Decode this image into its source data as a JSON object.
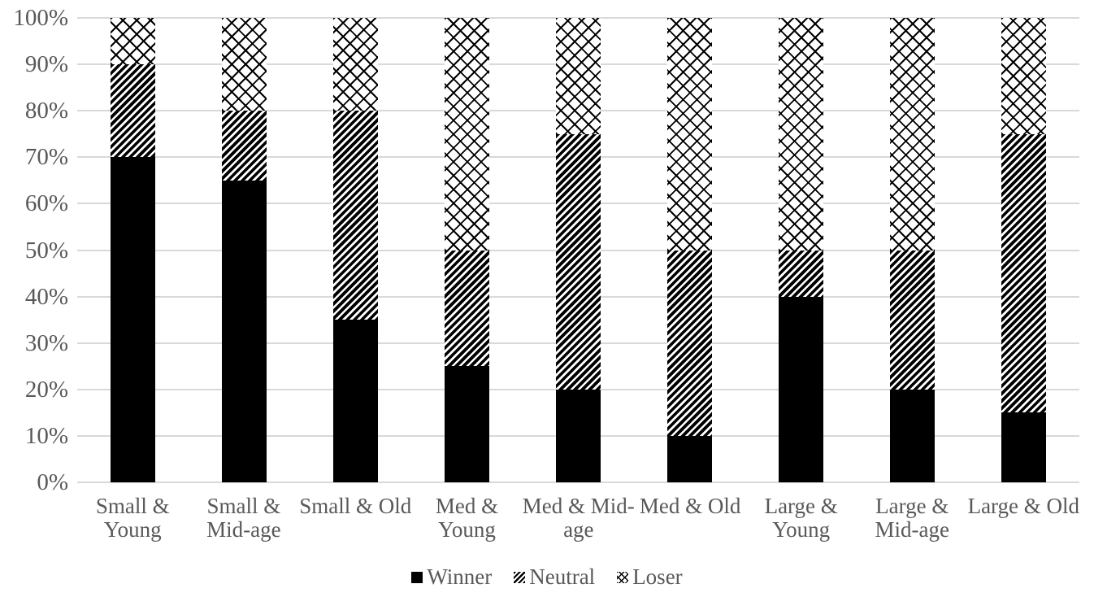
{
  "chart_data": {
    "type": "bar",
    "stacked": true,
    "percent_scale": true,
    "title": "",
    "xlabel": "",
    "ylabel": "",
    "categories": [
      "Small & Young",
      "Small & Mid-age",
      "Small & Old",
      "Med & Young",
      "Med & Mid-age",
      "Med & Old",
      "Large & Young",
      "Large & Mid-age",
      "Large & Old"
    ],
    "tick_lines": [
      [
        "Small &",
        "Young"
      ],
      [
        "Small &",
        "Mid-age"
      ],
      [
        "Small & Old"
      ],
      [
        "Med &",
        "Young"
      ],
      [
        "Med & Mid-",
        "age"
      ],
      [
        "Med & Old"
      ],
      [
        "Large &",
        "Young"
      ],
      [
        "Large &",
        "Mid-age"
      ],
      [
        "Large & Old"
      ]
    ],
    "series": [
      {
        "name": "Winner",
        "pattern": "solid",
        "values": [
          70,
          65,
          35,
          25,
          20,
          10,
          40,
          20,
          15
        ]
      },
      {
        "name": "Neutral",
        "pattern": "diagonal-stripes",
        "values": [
          20,
          15,
          45,
          25,
          55,
          40,
          10,
          30,
          60
        ]
      },
      {
        "name": "Loser",
        "pattern": "crosshatch",
        "values": [
          10,
          20,
          20,
          50,
          25,
          50,
          50,
          50,
          25
        ]
      }
    ],
    "y_axis": {
      "min": 0,
      "max": 100,
      "step": 10,
      "tick_labels": [
        "0%",
        "10%",
        "20%",
        "30%",
        "40%",
        "50%",
        "60%",
        "70%",
        "80%",
        "90%",
        "100%"
      ]
    },
    "legend": {
      "position": "bottom",
      "items": [
        {
          "label": "Winner",
          "pattern": "solid"
        },
        {
          "label": "Neutral",
          "pattern": "diagonal-stripes"
        },
        {
          "label": "Loser",
          "pattern": "crosshatch"
        }
      ]
    },
    "grid": true,
    "colors": {
      "bar_fill": "#000000",
      "pattern_background": "#ffffff",
      "gridline": "#d9d9d9",
      "label_text": "#595959",
      "background": "#ffffff"
    }
  }
}
